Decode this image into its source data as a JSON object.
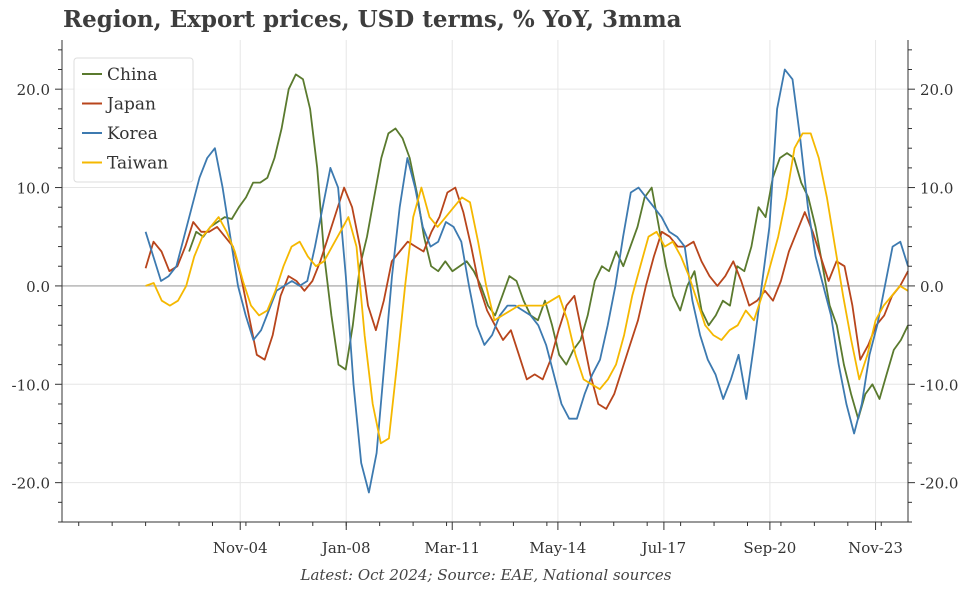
{
  "chart_data": {
    "type": "line",
    "title": "Region, Export prices, USD terms, % YoY, 3mma",
    "caption": "Latest: Oct 2024; Source: EAE, National sources",
    "x_start": 2002.0,
    "x_end": 2024.8,
    "xlim": [
      1999.5,
      2024.8
    ],
    "ylim": [
      -24,
      25
    ],
    "x_ticks": [
      {
        "value": 2004.83,
        "label": "Nov-04"
      },
      {
        "value": 2008.0,
        "label": "Jan-08"
      },
      {
        "value": 2011.17,
        "label": "Mar-11"
      },
      {
        "value": 2014.33,
        "label": "May-14"
      },
      {
        "value": 2017.5,
        "label": "Jul-17"
      },
      {
        "value": 2020.67,
        "label": "Sep-20"
      },
      {
        "value": 2023.83,
        "label": "Nov-23"
      }
    ],
    "y_ticks_left": [
      {
        "value": 20,
        "label": "20.0"
      },
      {
        "value": 10,
        "label": "10.0"
      },
      {
        "value": 0,
        "label": "0.0"
      },
      {
        "value": -10,
        "label": "-10.0"
      },
      {
        "value": -20,
        "label": "-20.0"
      }
    ],
    "y_ticks_right": [
      {
        "value": 20,
        "label": "20.0"
      },
      {
        "value": 10,
        "label": "10.0"
      },
      {
        "value": 0,
        "label": "0.0"
      },
      {
        "value": -10,
        "label": "-10.0"
      },
      {
        "value": -20,
        "label": "-20.0"
      }
    ],
    "legend_position": "top-left",
    "series": [
      {
        "name": "China",
        "color": "#5a7a2e",
        "x_start": 2003.3,
        "values": [
          3.5,
          5.5,
          5.0,
          6.0,
          6.5,
          7.0,
          6.8,
          8.0,
          9.0,
          10.5,
          10.5,
          11.0,
          13.0,
          16.0,
          20.0,
          21.5,
          21.0,
          18.0,
          12.0,
          3.0,
          -3.0,
          -8.0,
          -8.5,
          -4.0,
          2.0,
          5.0,
          9.0,
          13.0,
          15.5,
          16.0,
          15.0,
          13.0,
          9.5,
          5.0,
          2.0,
          1.5,
          2.5,
          1.5,
          2.0,
          2.5,
          1.5,
          0.0,
          -2.0,
          -3.0,
          -1.0,
          1.0,
          0.5,
          -1.5,
          -3.0,
          -3.5,
          -1.5,
          -4.0,
          -7.0,
          -8.0,
          -6.5,
          -5.5,
          -3.0,
          0.5,
          2.0,
          1.5,
          3.5,
          2.0,
          4.0,
          6.0,
          9.0,
          10.0,
          6.0,
          2.0,
          -1.0,
          -2.5,
          0.0,
          1.5,
          -2.5,
          -4.0,
          -3.0,
          -1.5,
          -2.0,
          2.0,
          1.5,
          4.0,
          8.0,
          7.0,
          11.0,
          13.0,
          13.5,
          13.0,
          10.5,
          9.0,
          6.0,
          2.0,
          -2.0,
          -4.0,
          -8.0,
          -11.0,
          -13.5,
          -11.0,
          -10.0,
          -11.5,
          -9.0,
          -6.5,
          -5.5,
          -4.0
        ]
      },
      {
        "name": "Japan",
        "color": "#b8451c",
        "x_start": 2002.0,
        "values": [
          1.8,
          4.5,
          3.5,
          1.5,
          2.0,
          4.0,
          6.5,
          5.5,
          5.5,
          6.0,
          5.0,
          4.0,
          1.0,
          -3.0,
          -7.0,
          -7.5,
          -5.0,
          -1.0,
          1.0,
          0.5,
          -0.5,
          0.5,
          2.5,
          5.0,
          7.5,
          10.0,
          8.0,
          4.0,
          -2.0,
          -4.5,
          -1.5,
          2.5,
          3.5,
          4.5,
          4.0,
          3.5,
          5.5,
          7.0,
          9.5,
          10.0,
          7.5,
          4.0,
          0.0,
          -2.5,
          -4.0,
          -5.5,
          -4.5,
          -7.0,
          -9.5,
          -9.0,
          -9.5,
          -7.5,
          -4.5,
          -2.0,
          -1.0,
          -5.0,
          -9.0,
          -12.0,
          -12.5,
          -11.0,
          -8.5,
          -6.0,
          -3.5,
          0.0,
          3.0,
          5.5,
          5.0,
          4.0,
          4.0,
          4.5,
          2.5,
          1.0,
          0.0,
          1.0,
          2.5,
          0.5,
          -2.0,
          -1.5,
          -0.5,
          -1.5,
          0.5,
          3.5,
          5.5,
          7.5,
          5.5,
          3.0,
          0.5,
          2.5,
          2.0,
          -2.0,
          -7.5,
          -6.0,
          -4.0,
          -3.0,
          -1.0,
          0.0,
          1.5
        ]
      },
      {
        "name": "Korea",
        "color": "#3d7ab0",
        "x_start": 2002.0,
        "values": [
          5.5,
          3.0,
          0.5,
          1.0,
          2.0,
          5.0,
          8.0,
          11.0,
          13.0,
          14.0,
          10.0,
          5.0,
          0.0,
          -3.0,
          -5.5,
          -4.5,
          -2.5,
          -0.5,
          0.0,
          0.5,
          0.0,
          0.5,
          4.0,
          8.0,
          12.0,
          10.0,
          1.0,
          -10.0,
          -18.0,
          -21.0,
          -17.0,
          -8.0,
          1.0,
          8.0,
          13.0,
          10.0,
          6.0,
          4.0,
          4.5,
          6.5,
          6.0,
          4.5,
          0.0,
          -4.0,
          -6.0,
          -5.0,
          -3.0,
          -2.0,
          -2.0,
          -2.5,
          -3.0,
          -4.0,
          -6.0,
          -9.0,
          -12.0,
          -13.5,
          -13.5,
          -11.0,
          -9.0,
          -7.5,
          -4.0,
          0.0,
          5.0,
          9.5,
          10.0,
          9.0,
          8.0,
          7.0,
          5.5,
          5.0,
          4.0,
          -1.5,
          -5.0,
          -7.5,
          -9.0,
          -11.5,
          -9.5,
          -7.0,
          -11.5,
          -6.0,
          0.0,
          6.0,
          18.0,
          22.0,
          21.0,
          15.0,
          8.0,
          3.0,
          0.0,
          -3.0,
          -8.0,
          -12.0,
          -15.0,
          -12.0,
          -7.0,
          -4.0,
          0.0,
          4.0,
          4.5,
          2.0
        ]
      },
      {
        "name": "Taiwan",
        "color": "#f5b800",
        "x_start": 2002.0,
        "values": [
          0.0,
          0.3,
          -1.5,
          -2.0,
          -1.5,
          0.0,
          3.0,
          5.0,
          6.0,
          7.0,
          5.5,
          3.5,
          0.5,
          -2.0,
          -3.0,
          -2.5,
          -0.5,
          2.0,
          4.0,
          4.5,
          3.0,
          2.0,
          2.5,
          4.0,
          5.5,
          7.0,
          4.0,
          -5.0,
          -12.0,
          -16.0,
          -15.5,
          -8.0,
          0.0,
          7.0,
          10.0,
          7.0,
          6.0,
          7.0,
          8.0,
          9.0,
          8.5,
          4.5,
          0.0,
          -3.5,
          -3.0,
          -2.5,
          -2.0,
          -2.0,
          -2.0,
          -2.0,
          -1.5,
          -1.0,
          -3.5,
          -7.0,
          -9.5,
          -10.0,
          -10.5,
          -9.5,
          -8.0,
          -5.0,
          -1.0,
          2.0,
          5.0,
          5.5,
          4.0,
          4.5,
          3.0,
          1.0,
          -1.5,
          -4.0,
          -5.0,
          -5.5,
          -4.5,
          -4.0,
          -2.5,
          -3.5,
          -1.0,
          2.0,
          5.0,
          9.0,
          14.0,
          15.5,
          15.5,
          13.0,
          9.0,
          4.0,
          -1.0,
          -5.5,
          -9.5,
          -7.0,
          -3.5,
          -2.0,
          -1.0,
          0.0,
          -0.5
        ]
      }
    ]
  }
}
